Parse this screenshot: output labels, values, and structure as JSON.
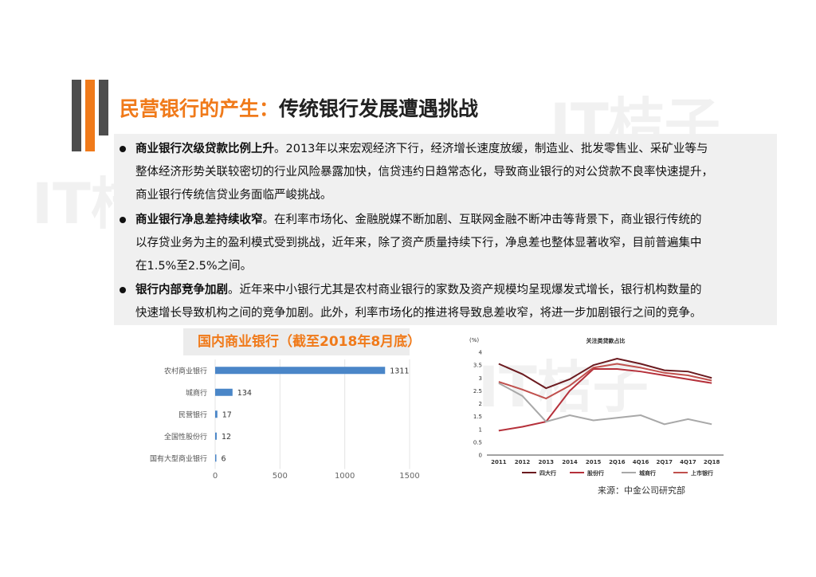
{
  "title": {
    "orange": "民营银行的产生：",
    "dark": "传统银行发展遭遇挑战"
  },
  "watermark": "IT桔子",
  "bullets": [
    {
      "bold": "商业银行次级贷款比例上升",
      "lines": [
        "。2013年以来宏观经济下行，经济增长速度放缓，制造业、批发零售业、采矿业等与",
        "整体经济形势关联较密切的行业风险暴露加快，信贷违约日趋常态化，导致商业银行的对公贷款不良率快速提升，",
        "商业银行传统信贷业务面临严峻挑战。"
      ]
    },
    {
      "bold": "商业银行净息差持续收窄",
      "lines": [
        "。在利率市场化、金融脱媒不断加剧、互联网金融不断冲击等背景下，商业银行传统的",
        "以存贷业务为主的盈利模式受到挑战，近年来，除了资产质量持续下行，净息差也整体显著收窄，目前普遍集中",
        "在1.5%至2.5%之间。"
      ]
    },
    {
      "bold": "银行内部竞争加剧",
      "lines": [
        "。近年来中小银行尤其是农村商业银行的家数及资产规模均呈现爆发式增长，银行机构数量的",
        "快速增长导致机构之间的竞争加剧。此外，利率市场化的推进将导致息差收窄，将进一步加剧银行之间的竞争。"
      ]
    }
  ],
  "colors": {
    "accent": "#f07a1a",
    "bar": "#4a86c8",
    "series": [
      "#6b1a1f",
      "#b5303a",
      "#a8a8a8",
      "#c0504d"
    ]
  },
  "source": "来源：中金公司研究部",
  "chart_data": [
    {
      "type": "bar",
      "orientation": "horizontal",
      "title": "国内商业银行（截至2018年8月底）",
      "categories": [
        "农村商业银行",
        "城商行",
        "民营银行",
        "全国性股份行",
        "国有大型商业银行"
      ],
      "values": [
        1311,
        134,
        17,
        12,
        6
      ],
      "xlim": [
        0,
        1500
      ],
      "xticks": [
        "0",
        "500",
        "1000",
        "1500"
      ],
      "grid": true
    },
    {
      "type": "line",
      "title": "关注类贷款占比",
      "ylabel": "(%)",
      "x": [
        "2011",
        "2012",
        "2013",
        "2014",
        "2015",
        "2Q16",
        "4Q16",
        "2Q17",
        "4Q17",
        "2Q18"
      ],
      "ylim": [
        0,
        4
      ],
      "yticks": [
        "0",
        "0.5",
        "1",
        "1.5",
        "2",
        "2.5",
        "3",
        "3.5",
        "4"
      ],
      "legend_position": "bottom",
      "series": [
        {
          "name": "四大行",
          "values": [
            3.55,
            3.15,
            2.6,
            2.95,
            3.5,
            3.75,
            3.55,
            3.3,
            3.25,
            3.0
          ]
        },
        {
          "name": "股份行",
          "values": [
            0.95,
            1.1,
            1.3,
            2.5,
            3.35,
            3.35,
            3.25,
            3.1,
            2.95,
            2.8
          ]
        },
        {
          "name": "城商行",
          "values": [
            2.8,
            2.3,
            1.3,
            1.55,
            1.35,
            1.45,
            1.55,
            1.2,
            1.4,
            1.2
          ]
        },
        {
          "name": "上市银行",
          "values": [
            2.85,
            2.55,
            2.2,
            2.7,
            3.4,
            3.55,
            3.4,
            3.2,
            3.1,
            2.9
          ]
        }
      ]
    }
  ]
}
